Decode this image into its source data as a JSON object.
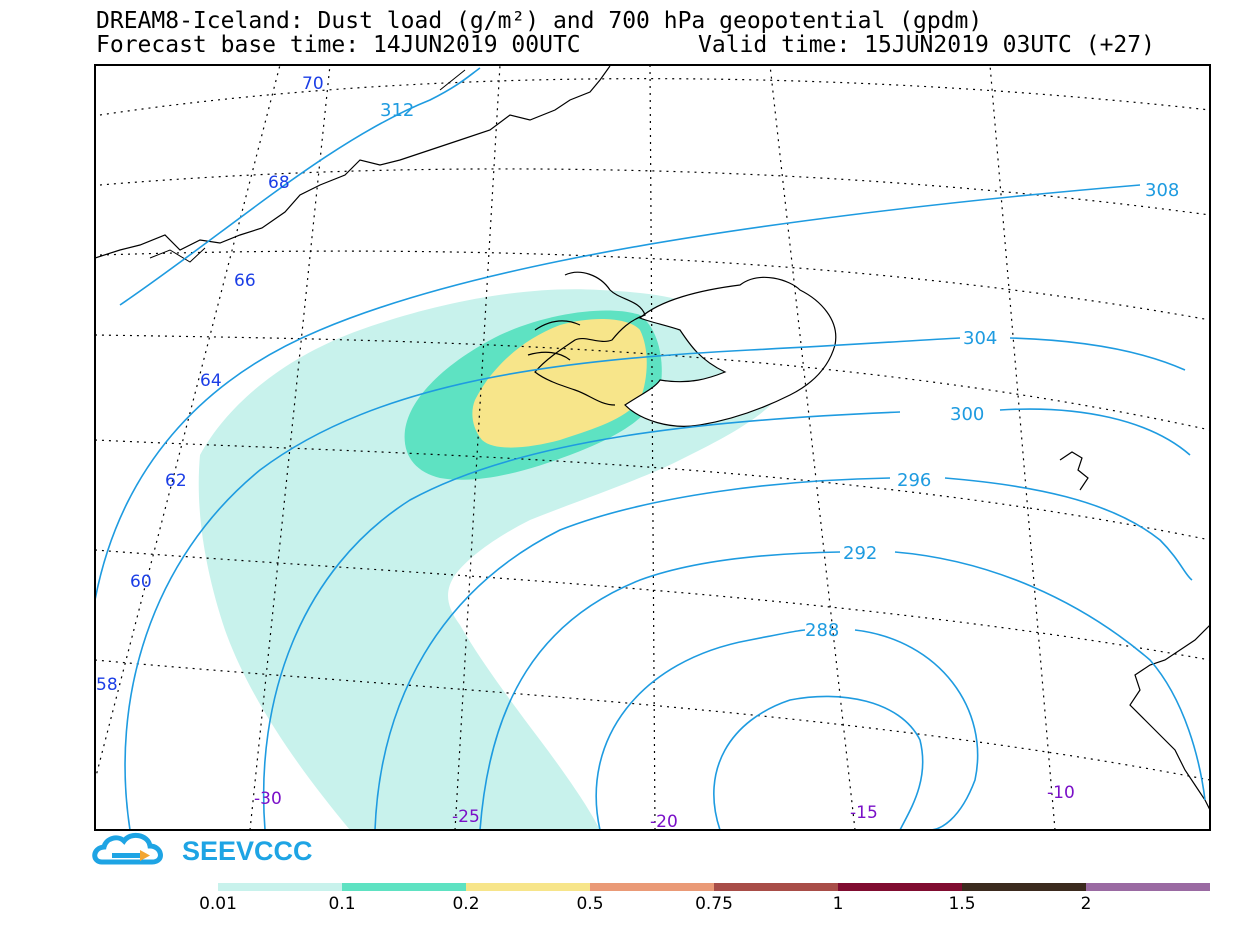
{
  "header": {
    "title_line1": "DREAM8-Iceland: Dust load (g/m²) and 700 hPa geopotential (gpdm)",
    "forecast_base": "Forecast base time: 14JUN2019 00UTC",
    "valid_time": "Valid time: 15JUN2019 03UTC (+27)"
  },
  "map": {
    "latitude_labels": [
      "70",
      "68",
      "66",
      "64",
      "62",
      "60",
      "58"
    ],
    "longitude_labels": [
      "-30",
      "-25",
      "-20",
      "-15",
      "-10"
    ],
    "geopotential_labels": [
      "312",
      "308",
      "304",
      "300",
      "296",
      "292",
      "288"
    ],
    "colors": {
      "dust_001": "#c8f2ec",
      "dust_01": "#5ee2c2",
      "dust_02": "#f7e58a",
      "contour": "#1e9be0",
      "lat_label": "#1b3ee6",
      "lon_label": "#7a10c8"
    }
  },
  "logo": {
    "text": "SEEVCCC"
  },
  "legend": {
    "colors": [
      "#c8f2ec",
      "#5ee2c2",
      "#f7e58a",
      "#ea9a77",
      "#a84d48",
      "#800c30",
      "#3b2a1e",
      "#9a6aa2"
    ],
    "labels": [
      "0.01",
      "0.1",
      "0.2",
      "0.5",
      "0.75",
      "1",
      "1.5",
      "2"
    ]
  }
}
